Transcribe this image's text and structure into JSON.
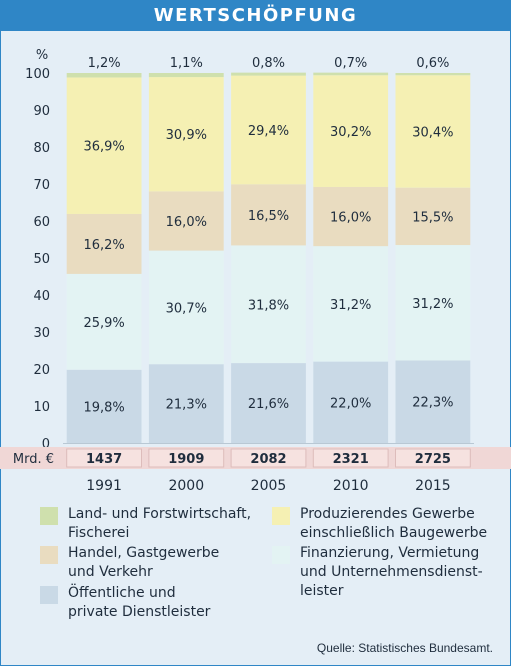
{
  "title": "WERTSCHÖPFUNG",
  "source": "Quelle: Statistisches Bundesamt.",
  "colors": {
    "frame_bg": "#e4eef6",
    "title_bar": "#2f86c6",
    "total_row_bg": "#f0d7d6"
  },
  "chart_data": {
    "type": "bar",
    "stacked": true,
    "percent_stacked": true,
    "categories": [
      "1991",
      "2000",
      "2005",
      "2010",
      "2015"
    ],
    "y_unit": "%",
    "ylim": [
      0,
      100
    ],
    "y_ticks": [
      0,
      10,
      20,
      30,
      40,
      50,
      60,
      70,
      80,
      90,
      100
    ],
    "grid": false,
    "legend_position": "bottom",
    "series": [
      {
        "name": "Öffentliche und\nprivate Dienstleister",
        "values": [
          19.8,
          21.3,
          21.6,
          22.0,
          22.3
        ],
        "labels": [
          "19,8%",
          "21,3%",
          "21,6%",
          "22,0%",
          "22,3%"
        ],
        "color": "#c9d9e6"
      },
      {
        "name": "Finanzierung, Vermietung\nund Unternehmensdienst-\nleister",
        "values": [
          25.9,
          30.7,
          31.8,
          31.2,
          31.2
        ],
        "labels": [
          "25,9%",
          "30,7%",
          "31,8%",
          "31,2%",
          "31,2%"
        ],
        "color": "#e3f3f3"
      },
      {
        "name": "Handel, Gastgewerbe\nund Verkehr",
        "values": [
          16.2,
          16.0,
          16.5,
          16.0,
          15.5
        ],
        "labels": [
          "16,2%",
          "16,0%",
          "16,5%",
          "16,0%",
          "15,5%"
        ],
        "color": "#e9dcc0"
      },
      {
        "name": "Produzierendes Gewerbe\neinschließlich Baugewerbe",
        "values": [
          36.9,
          30.9,
          29.4,
          30.2,
          30.4
        ],
        "labels": [
          "36,9%",
          "30,9%",
          "29,4%",
          "30,2%",
          "30,4%"
        ],
        "color": "#f5f0b3"
      },
      {
        "name": "Land- und Forstwirtschaft,\nFischerei",
        "values": [
          1.2,
          1.1,
          0.8,
          0.7,
          0.6
        ],
        "labels": [
          "1,2%",
          "1,1%",
          "0,8%",
          "0,7%",
          "0,6%"
        ],
        "color": "#cfe0ad"
      }
    ],
    "totals": {
      "label": "Mrd. €",
      "values": [
        "1437",
        "1909",
        "2082",
        "2321",
        "2725"
      ]
    }
  }
}
